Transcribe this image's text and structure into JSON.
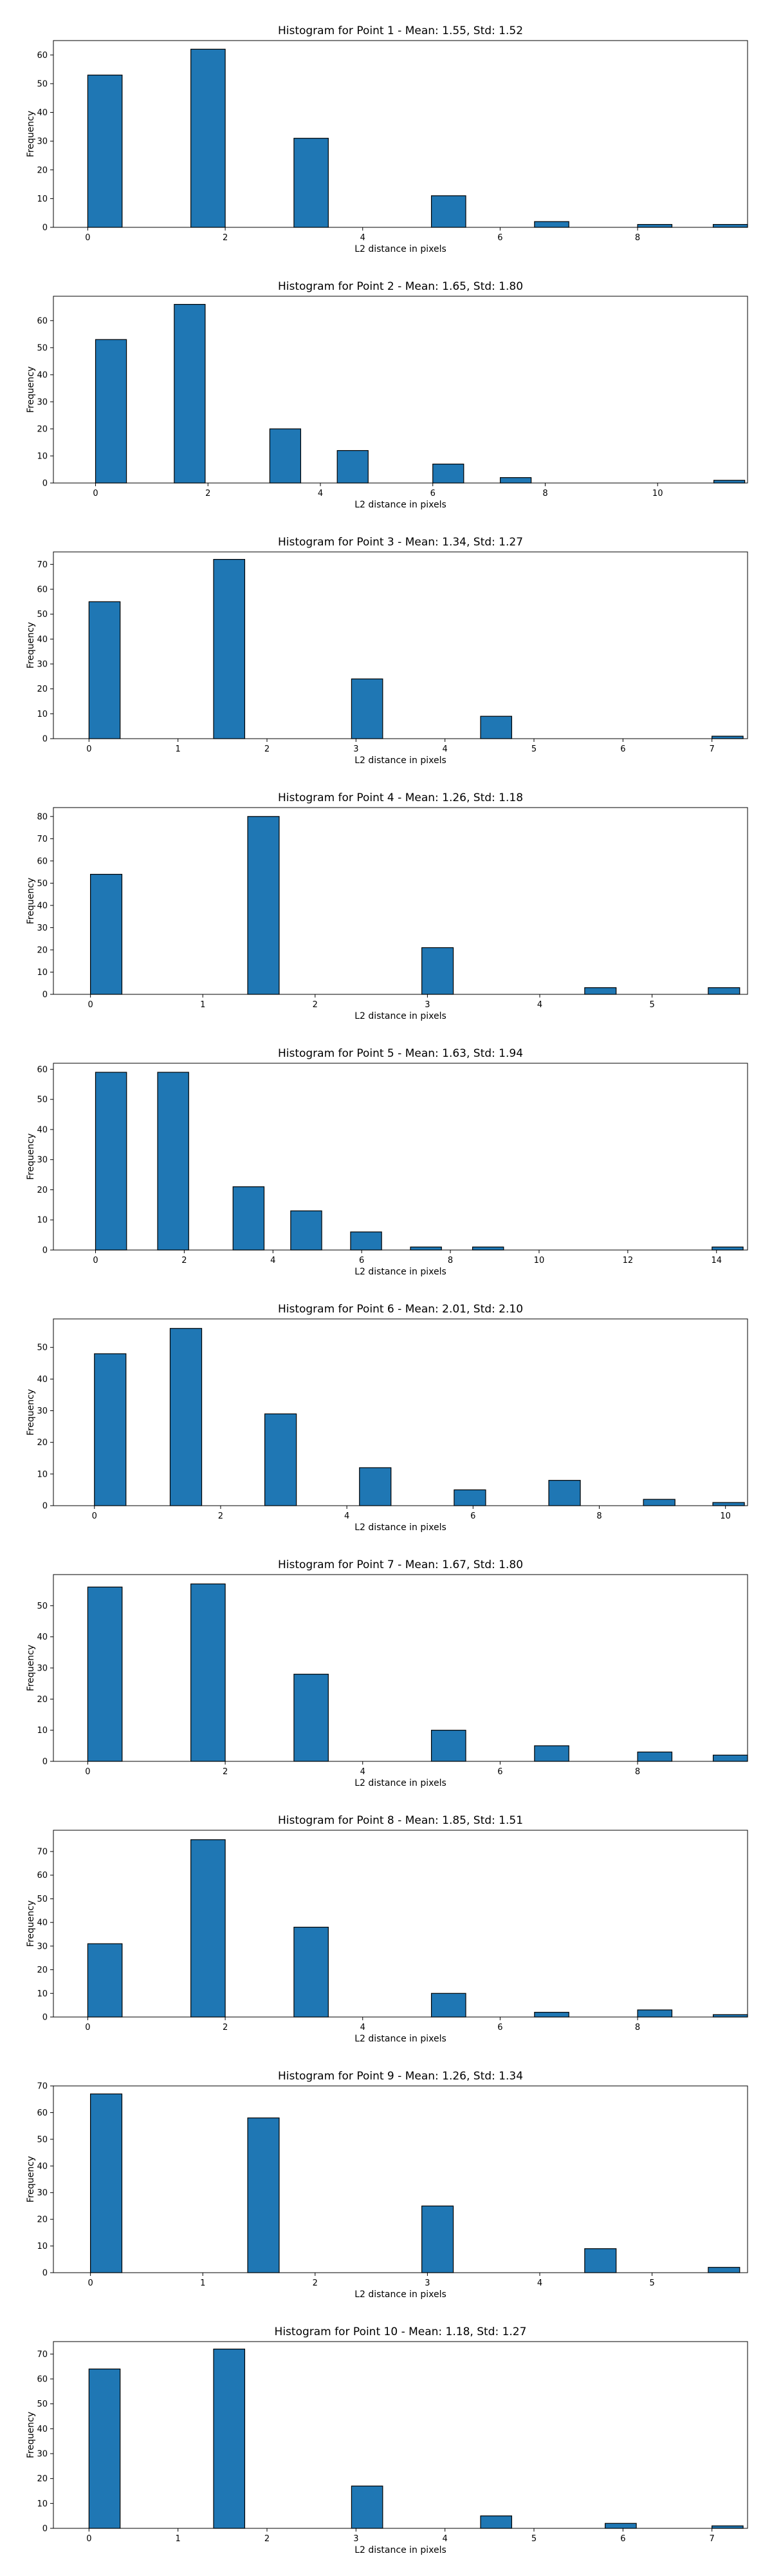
{
  "chart_data": [
    {
      "type": "bar",
      "title": "Histogram for Point 1 - Mean: 1.55, Std: 1.52",
      "xlabel": "L2 distance in pixels",
      "ylabel": "Frequency",
      "bars": [
        [
          0.0,
          53
        ],
        [
          1.5,
          62
        ],
        [
          3.0,
          31
        ],
        [
          5.0,
          11
        ],
        [
          6.5,
          2
        ],
        [
          8.0,
          1
        ],
        [
          9.1,
          1
        ]
      ],
      "bar_width_data": 0.5,
      "xlim": [
        -0.5,
        9.6
      ],
      "xticks": [
        0,
        2,
        4,
        6,
        8
      ],
      "ylim": [
        0,
        65
      ],
      "yticks": [
        0,
        10,
        20,
        30,
        40,
        50,
        60
      ],
      "grid": false,
      "color": "#1f77b4"
    },
    {
      "type": "bar",
      "title": "Histogram for Point 2 - Mean: 1.65, Std: 1.80",
      "xlabel": "L2 distance in pixels",
      "ylabel": "Frequency",
      "bars": [
        [
          0.0,
          53
        ],
        [
          1.4,
          66
        ],
        [
          3.1,
          20
        ],
        [
          4.3,
          12
        ],
        [
          6.0,
          7
        ],
        [
          7.2,
          2
        ],
        [
          11.0,
          1
        ]
      ],
      "bar_width_data": 0.55,
      "xlim": [
        -0.75,
        11.6
      ],
      "xticks": [
        0,
        2,
        4,
        6,
        8,
        10
      ],
      "ylim": [
        0,
        69
      ],
      "yticks": [
        0,
        10,
        20,
        30,
        40,
        50,
        60
      ],
      "grid": false,
      "color": "#1f77b4"
    },
    {
      "type": "bar",
      "title": "Histogram for Point 3 - Mean: 1.34, Std: 1.27",
      "xlabel": "L2 distance in pixels",
      "ylabel": "Frequency",
      "bars": [
        [
          0.0,
          55
        ],
        [
          1.4,
          72
        ],
        [
          2.95,
          24
        ],
        [
          4.4,
          9
        ],
        [
          7.0,
          1
        ]
      ],
      "bar_width_data": 0.35,
      "xlim": [
        -0.4,
        7.4
      ],
      "xticks": [
        0,
        1,
        2,
        3,
        4,
        5,
        6,
        7
      ],
      "ylim": [
        0,
        75
      ],
      "yticks": [
        0,
        10,
        20,
        30,
        40,
        50,
        60,
        70
      ],
      "grid": false,
      "color": "#1f77b4"
    },
    {
      "type": "bar",
      "title": "Histogram for Point 4 - Mean: 1.26, Std: 1.18",
      "xlabel": "L2 distance in pixels",
      "ylabel": "Frequency",
      "bars": [
        [
          0.0,
          54
        ],
        [
          1.4,
          80
        ],
        [
          2.95,
          21
        ],
        [
          4.4,
          3
        ],
        [
          5.5,
          3
        ]
      ],
      "bar_width_data": 0.28,
      "xlim": [
        -0.33,
        5.85
      ],
      "xticks": [
        0,
        1,
        2,
        3,
        4,
        5
      ],
      "ylim": [
        0,
        84
      ],
      "yticks": [
        0,
        10,
        20,
        30,
        40,
        50,
        60,
        70,
        80
      ],
      "grid": false,
      "color": "#1f77b4"
    },
    {
      "type": "bar",
      "title": "Histogram for Point 5 - Mean: 1.63, Std: 1.94",
      "xlabel": "L2 distance in pixels",
      "ylabel": "Frequency",
      "bars": [
        [
          0.0,
          59
        ],
        [
          1.4,
          59
        ],
        [
          3.1,
          21
        ],
        [
          4.4,
          13
        ],
        [
          5.75,
          6
        ],
        [
          7.1,
          1
        ],
        [
          8.5,
          1
        ],
        [
          13.9,
          1
        ]
      ],
      "bar_width_data": 0.7,
      "xlim": [
        -0.95,
        14.7
      ],
      "xticks": [
        0,
        2,
        4,
        6,
        8,
        10,
        12,
        14
      ],
      "ylim": [
        0,
        62
      ],
      "yticks": [
        0,
        10,
        20,
        30,
        40,
        50,
        60
      ],
      "grid": false,
      "color": "#1f77b4"
    },
    {
      "type": "bar",
      "title": "Histogram for Point 6 - Mean: 2.01, Std: 2.10",
      "xlabel": "L2 distance in pixels",
      "ylabel": "Frequency",
      "bars": [
        [
          0.0,
          48
        ],
        [
          1.2,
          56
        ],
        [
          2.7,
          29
        ],
        [
          4.2,
          12
        ],
        [
          5.7,
          5
        ],
        [
          7.2,
          8
        ],
        [
          8.7,
          2
        ],
        [
          9.8,
          1
        ]
      ],
      "bar_width_data": 0.5,
      "xlim": [
        -0.65,
        10.35
      ],
      "xticks": [
        0,
        2,
        4,
        6,
        8,
        10
      ],
      "ylim": [
        0,
        59
      ],
      "yticks": [
        0,
        10,
        20,
        30,
        40,
        50
      ],
      "grid": false,
      "color": "#1f77b4"
    },
    {
      "type": "bar",
      "title": "Histogram for Point 7 - Mean: 1.67, Std: 1.80",
      "xlabel": "L2 distance in pixels",
      "ylabel": "Frequency",
      "bars": [
        [
          0.0,
          56
        ],
        [
          1.5,
          57
        ],
        [
          3.0,
          28
        ],
        [
          5.0,
          10
        ],
        [
          6.5,
          5
        ],
        [
          8.0,
          3
        ],
        [
          9.1,
          2
        ]
      ],
      "bar_width_data": 0.5,
      "xlim": [
        -0.5,
        9.6
      ],
      "xticks": [
        0,
        2,
        4,
        6,
        8
      ],
      "ylim": [
        0,
        60
      ],
      "yticks": [
        0,
        10,
        20,
        30,
        40,
        50
      ],
      "grid": false,
      "color": "#1f77b4"
    },
    {
      "type": "bar",
      "title": "Histogram for Point 8 - Mean: 1.85, Std: 1.51",
      "xlabel": "L2 distance in pixels",
      "ylabel": "Frequency",
      "bars": [
        [
          0.0,
          31
        ],
        [
          1.5,
          75
        ],
        [
          3.0,
          38
        ],
        [
          5.0,
          10
        ],
        [
          6.5,
          2
        ],
        [
          8.0,
          3
        ],
        [
          9.1,
          1
        ]
      ],
      "bar_width_data": 0.5,
      "xlim": [
        -0.5,
        9.6
      ],
      "xticks": [
        0,
        2,
        4,
        6,
        8
      ],
      "ylim": [
        0,
        79
      ],
      "yticks": [
        0,
        10,
        20,
        30,
        40,
        50,
        60,
        70
      ],
      "grid": false,
      "color": "#1f77b4"
    },
    {
      "type": "bar",
      "title": "Histogram for Point 9 - Mean: 1.26, Std: 1.34",
      "xlabel": "L2 distance in pixels",
      "ylabel": "Frequency",
      "bars": [
        [
          0.0,
          67
        ],
        [
          1.4,
          58
        ],
        [
          2.95,
          25
        ],
        [
          4.4,
          9
        ],
        [
          5.5,
          2
        ]
      ],
      "bar_width_data": 0.28,
      "xlim": [
        -0.33,
        5.85
      ],
      "xticks": [
        0,
        1,
        2,
        3,
        4,
        5
      ],
      "ylim": [
        0,
        70
      ],
      "yticks": [
        0,
        10,
        20,
        30,
        40,
        50,
        60,
        70
      ],
      "grid": false,
      "color": "#1f77b4"
    },
    {
      "type": "bar",
      "title": "Histogram for Point 10 - Mean: 1.18, Std: 1.27",
      "xlabel": "L2 distance in pixels",
      "ylabel": "Frequency",
      "bars": [
        [
          0.0,
          64
        ],
        [
          1.4,
          72
        ],
        [
          2.95,
          17
        ],
        [
          4.4,
          5
        ],
        [
          5.8,
          2
        ],
        [
          7.0,
          1
        ]
      ],
      "bar_width_data": 0.35,
      "xlim": [
        -0.4,
        7.4
      ],
      "xticks": [
        0,
        1,
        2,
        3,
        4,
        5,
        6,
        7
      ],
      "ylim": [
        0,
        75
      ],
      "yticks": [
        0,
        10,
        20,
        30,
        40,
        50,
        60,
        70
      ],
      "grid": false,
      "color": "#1f77b4"
    }
  ]
}
